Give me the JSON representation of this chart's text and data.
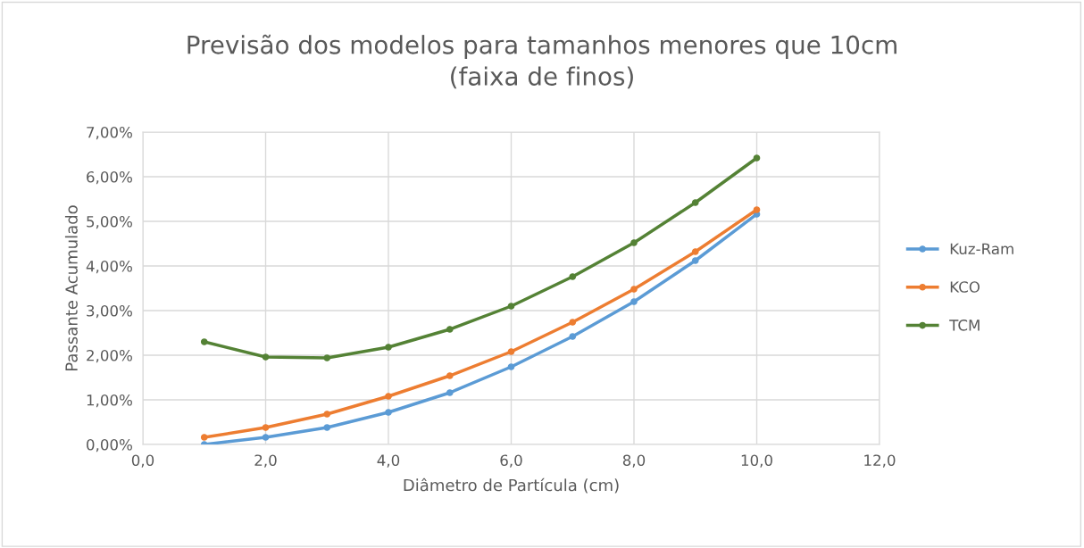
{
  "chart_data": {
    "type": "line",
    "title": "Previsão dos modelos para tamanhos menores que 10cm\n(faixa de finos)",
    "xlabel": "Diâmetro de Partícula (cm)",
    "ylabel": "Passante Acumulado",
    "x": [
      1,
      2,
      3,
      4,
      5,
      6,
      7,
      8,
      9,
      10
    ],
    "series": [
      {
        "name": "Kuz-Ram",
        "color": "#5b9bd5",
        "values": [
          0.0,
          0.16,
          0.38,
          0.72,
          1.16,
          1.74,
          2.42,
          3.2,
          4.12,
          5.16
        ]
      },
      {
        "name": "KCO",
        "color": "#ed7d31",
        "values": [
          0.16,
          0.38,
          0.68,
          1.08,
          1.54,
          2.08,
          2.74,
          3.48,
          4.32,
          5.26
        ]
      },
      {
        "name": "TCM",
        "color": "#548235",
        "values": [
          2.3,
          1.96,
          1.94,
          2.18,
          2.58,
          3.1,
          3.76,
          4.52,
          5.42,
          6.42
        ]
      }
    ],
    "xlim": [
      0,
      12
    ],
    "xticks": [
      {
        "value": 0,
        "label": "0,0"
      },
      {
        "value": 2,
        "label": "2,0"
      },
      {
        "value": 4,
        "label": "4,0"
      },
      {
        "value": 6,
        "label": "6,0"
      },
      {
        "value": 8,
        "label": "8,0"
      },
      {
        "value": 10,
        "label": "10,0"
      },
      {
        "value": 12,
        "label": "12,0"
      }
    ],
    "ylim": [
      0,
      7
    ],
    "yticks": [
      {
        "value": 0,
        "label": "0,00%"
      },
      {
        "value": 1,
        "label": "1,00%"
      },
      {
        "value": 2,
        "label": "2,00%"
      },
      {
        "value": 3,
        "label": "3,00%"
      },
      {
        "value": 4,
        "label": "4,00%"
      },
      {
        "value": 5,
        "label": "5,00%"
      },
      {
        "value": 6,
        "label": "6,00%"
      },
      {
        "value": 7,
        "label": "7,00%"
      }
    ],
    "grid": true,
    "legend": "right",
    "marker": "circle",
    "line_style": "solid"
  }
}
